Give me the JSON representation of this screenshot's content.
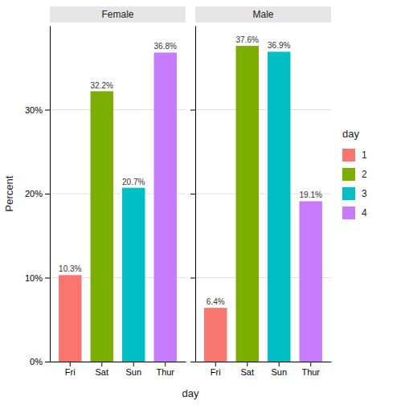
{
  "chart_data": [
    {
      "type": "bar",
      "title": "Female",
      "ylabel": "Percent",
      "xlabel": "day",
      "categories": [
        "Fri",
        "Sat",
        "Sun",
        "Thur"
      ],
      "series": [
        {
          "name": "1",
          "color": "#F8766D",
          "values": [
            0.103,
            null,
            null,
            null
          ],
          "value_labels": [
            "10.3%",
            null,
            null,
            null
          ]
        },
        {
          "name": "2",
          "color": "#7CAE00",
          "values": [
            null,
            0.322,
            null,
            null
          ],
          "value_labels": [
            null,
            "32.2%",
            null,
            null
          ]
        },
        {
          "name": "3",
          "color": "#00BFC4",
          "values": [
            null,
            null,
            0.207,
            null
          ],
          "value_labels": [
            null,
            null,
            "20.7%",
            null
          ]
        },
        {
          "name": "4",
          "color": "#C77CFF",
          "values": [
            null,
            null,
            null,
            0.368
          ],
          "value_labels": [
            null,
            null,
            null,
            "36.8%"
          ]
        }
      ],
      "stacked": true,
      "data_labels": true,
      "grid": true,
      "ylim": [
        0,
        0.4
      ],
      "yticks": [
        {
          "value": 0.0,
          "label": "0%"
        },
        {
          "value": 0.1,
          "label": "10%"
        },
        {
          "value": 0.2,
          "label": "20%"
        },
        {
          "value": 0.3,
          "label": "30%"
        }
      ]
    },
    {
      "type": "bar",
      "title": "Male",
      "categories": [
        "Fri",
        "Sat",
        "Sun",
        "Thur"
      ],
      "series": [
        {
          "name": "1",
          "color": "#F8766D",
          "values": [
            0.064,
            null,
            null,
            null
          ],
          "value_labels": [
            "6.4%",
            null,
            null,
            null
          ]
        },
        {
          "name": "2",
          "color": "#7CAE00",
          "values": [
            null,
            0.376,
            null,
            null
          ],
          "value_labels": [
            null,
            "37.6%",
            null,
            null
          ]
        },
        {
          "name": "3",
          "color": "#00BFC4",
          "values": [
            null,
            null,
            0.369,
            null
          ],
          "value_labels": [
            null,
            null,
            "36.9%",
            null
          ]
        },
        {
          "name": "4",
          "color": "#C77CFF",
          "values": [
            null,
            null,
            null,
            0.191
          ],
          "value_labels": [
            null,
            null,
            null,
            "19.1%"
          ]
        }
      ],
      "stacked": true,
      "data_labels": true,
      "grid": true,
      "tick_labels": "x",
      "legend": "right",
      "legend_title": "day",
      "ylim": [
        0,
        0.4
      ],
      "yticks": [
        0.0,
        0.1,
        0.2,
        0.3
      ]
    }
  ]
}
